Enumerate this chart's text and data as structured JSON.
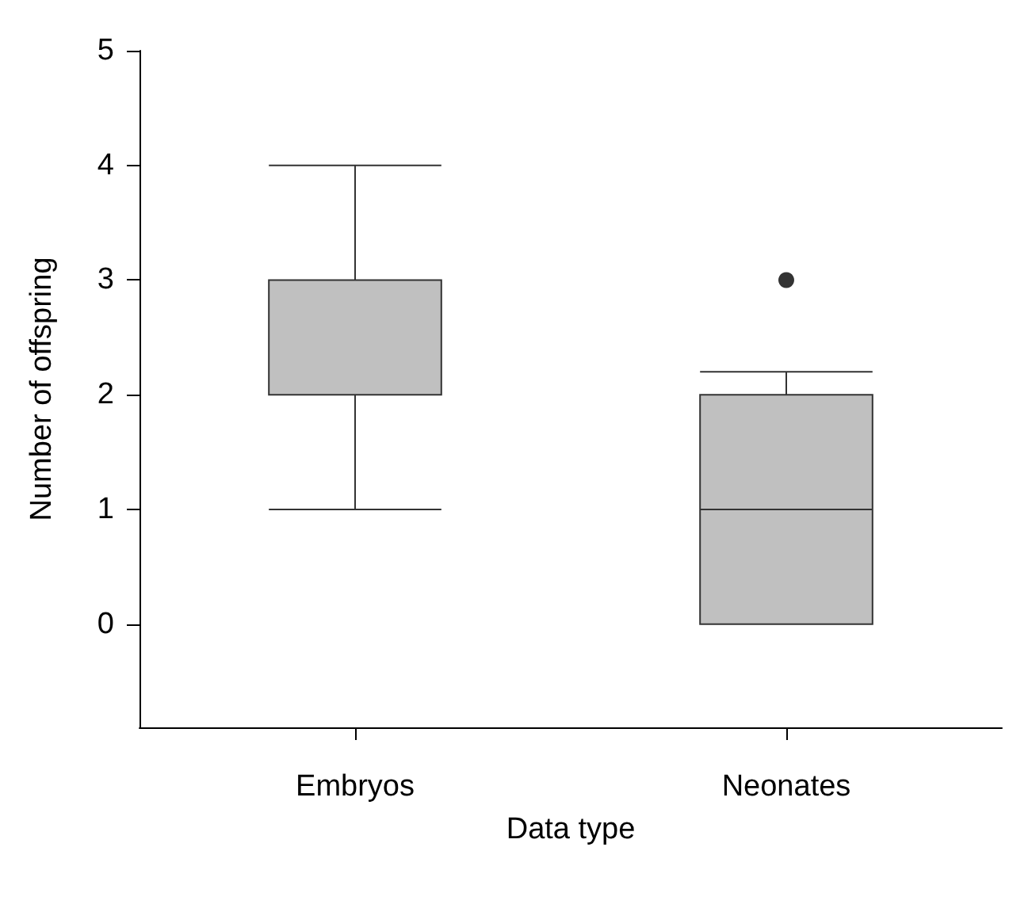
{
  "chart_data": {
    "type": "box",
    "xlabel": "Data type",
    "ylabel": "Number of offspring",
    "categories": [
      "Embryos",
      "Neonates"
    ],
    "boxes": [
      {
        "low": 1,
        "q1": 2,
        "median": 2,
        "q3": 3,
        "high": 4
      },
      {
        "low": 0,
        "q1": 0,
        "median": 1,
        "q3": 2,
        "high": 2.2,
        "outliers": [
          3
        ]
      }
    ],
    "color": "#c0c0c0",
    "ylim": [
      -0.9,
      5
    ],
    "yticks": [
      0,
      1,
      2,
      3,
      4,
      5
    ]
  }
}
